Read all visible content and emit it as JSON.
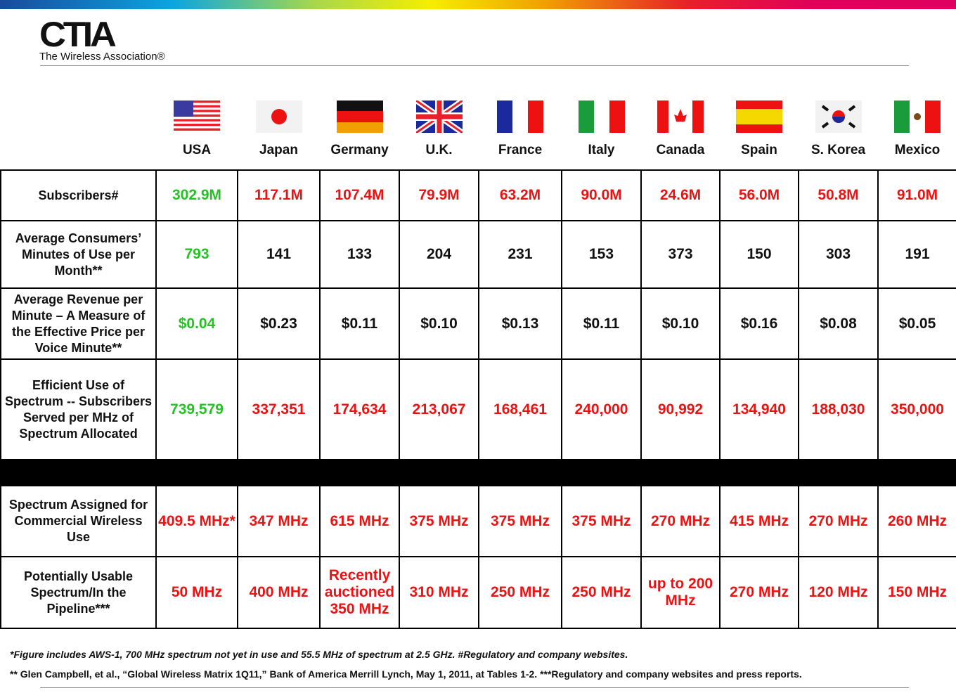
{
  "brand": {
    "logo": "CTIA",
    "tagline": "The Wireless Association®"
  },
  "colors": {
    "highlight": "#22c422",
    "red": "#ee1111",
    "text": "#111111"
  },
  "countries": [
    {
      "name": "USA",
      "flag": "usa-flag"
    },
    {
      "name": "Japan",
      "flag": "japan-flag"
    },
    {
      "name": "Germany",
      "flag": "germany-flag"
    },
    {
      "name": "U.K.",
      "flag": "uk-flag"
    },
    {
      "name": "France",
      "flag": "france-flag"
    },
    {
      "name": "Italy",
      "flag": "italy-flag"
    },
    {
      "name": "Canada",
      "flag": "canada-flag"
    },
    {
      "name": "Spain",
      "flag": "spain-flag"
    },
    {
      "name": "S. Korea",
      "flag": "south-korea-flag"
    },
    {
      "name": "Mexico",
      "flag": "mexico-flag"
    }
  ],
  "rows": [
    {
      "label": "Subscribers#",
      "values": [
        "302.9M",
        "117.1M",
        "107.4M",
        "79.9M",
        "63.2M",
        "90.0M",
        "24.6M",
        "56.0M",
        "50.8M",
        "91.0M"
      ],
      "color": "red"
    },
    {
      "label": "Average Consumers’ Minutes of Use per Month**",
      "values": [
        "793",
        "141",
        "133",
        "204",
        "231",
        "153",
        "373",
        "150",
        "303",
        "191"
      ],
      "color": "black"
    },
    {
      "label": "Average Revenue per Minute – A Measure of the Effective Price per Voice Minute**",
      "values": [
        "$0.04",
        "$0.23",
        "$0.11",
        "$0.10",
        "$0.13",
        "$0.11",
        "$0.10",
        "$0.16",
        "$0.08",
        "$0.05"
      ],
      "color": "black"
    },
    {
      "label": "Efficient Use of Spectrum -- Subscribers Served per MHz of Spectrum Allocated",
      "values": [
        "739,579",
        "337,351",
        "174,634",
        "213,067",
        "168,461",
        "240,000",
        "90,992",
        "134,940",
        "188,030",
        "350,000"
      ],
      "color": "red"
    }
  ],
  "rows2": [
    {
      "label": "Spectrum Assigned for Commercial Wireless Use",
      "values": [
        "409.5 MHz*",
        "347 MHz",
        "615 MHz",
        "375 MHz",
        "375 MHz",
        "375 MHz",
        "270 MHz",
        "415 MHz",
        "270 MHz",
        "260 MHz"
      ],
      "color": "red"
    },
    {
      "label": "Potentially Usable Spectrum/In the Pipeline***",
      "values": [
        "50 MHz",
        "400 MHz",
        "Recently auctioned 350 MHz",
        "310 MHz",
        "250 MHz",
        "250 MHz",
        "up to 200 MHz",
        "270 MHz",
        "120 MHz",
        "150 MHz"
      ],
      "color": "red"
    }
  ],
  "footnotes": [
    "*Figure includes AWS-1, 700 MHz spectrum not yet in use and 55.5 MHz of spectrum at 2.5 GHz. #Regulatory and company websites.",
    "** Glen Campbell, et al., “Global Wireless Matrix 1Q11,” Bank of America Merrill Lynch, May 1, 2011, at Tables 1-2. ***Regulatory and company websites and press reports."
  ]
}
